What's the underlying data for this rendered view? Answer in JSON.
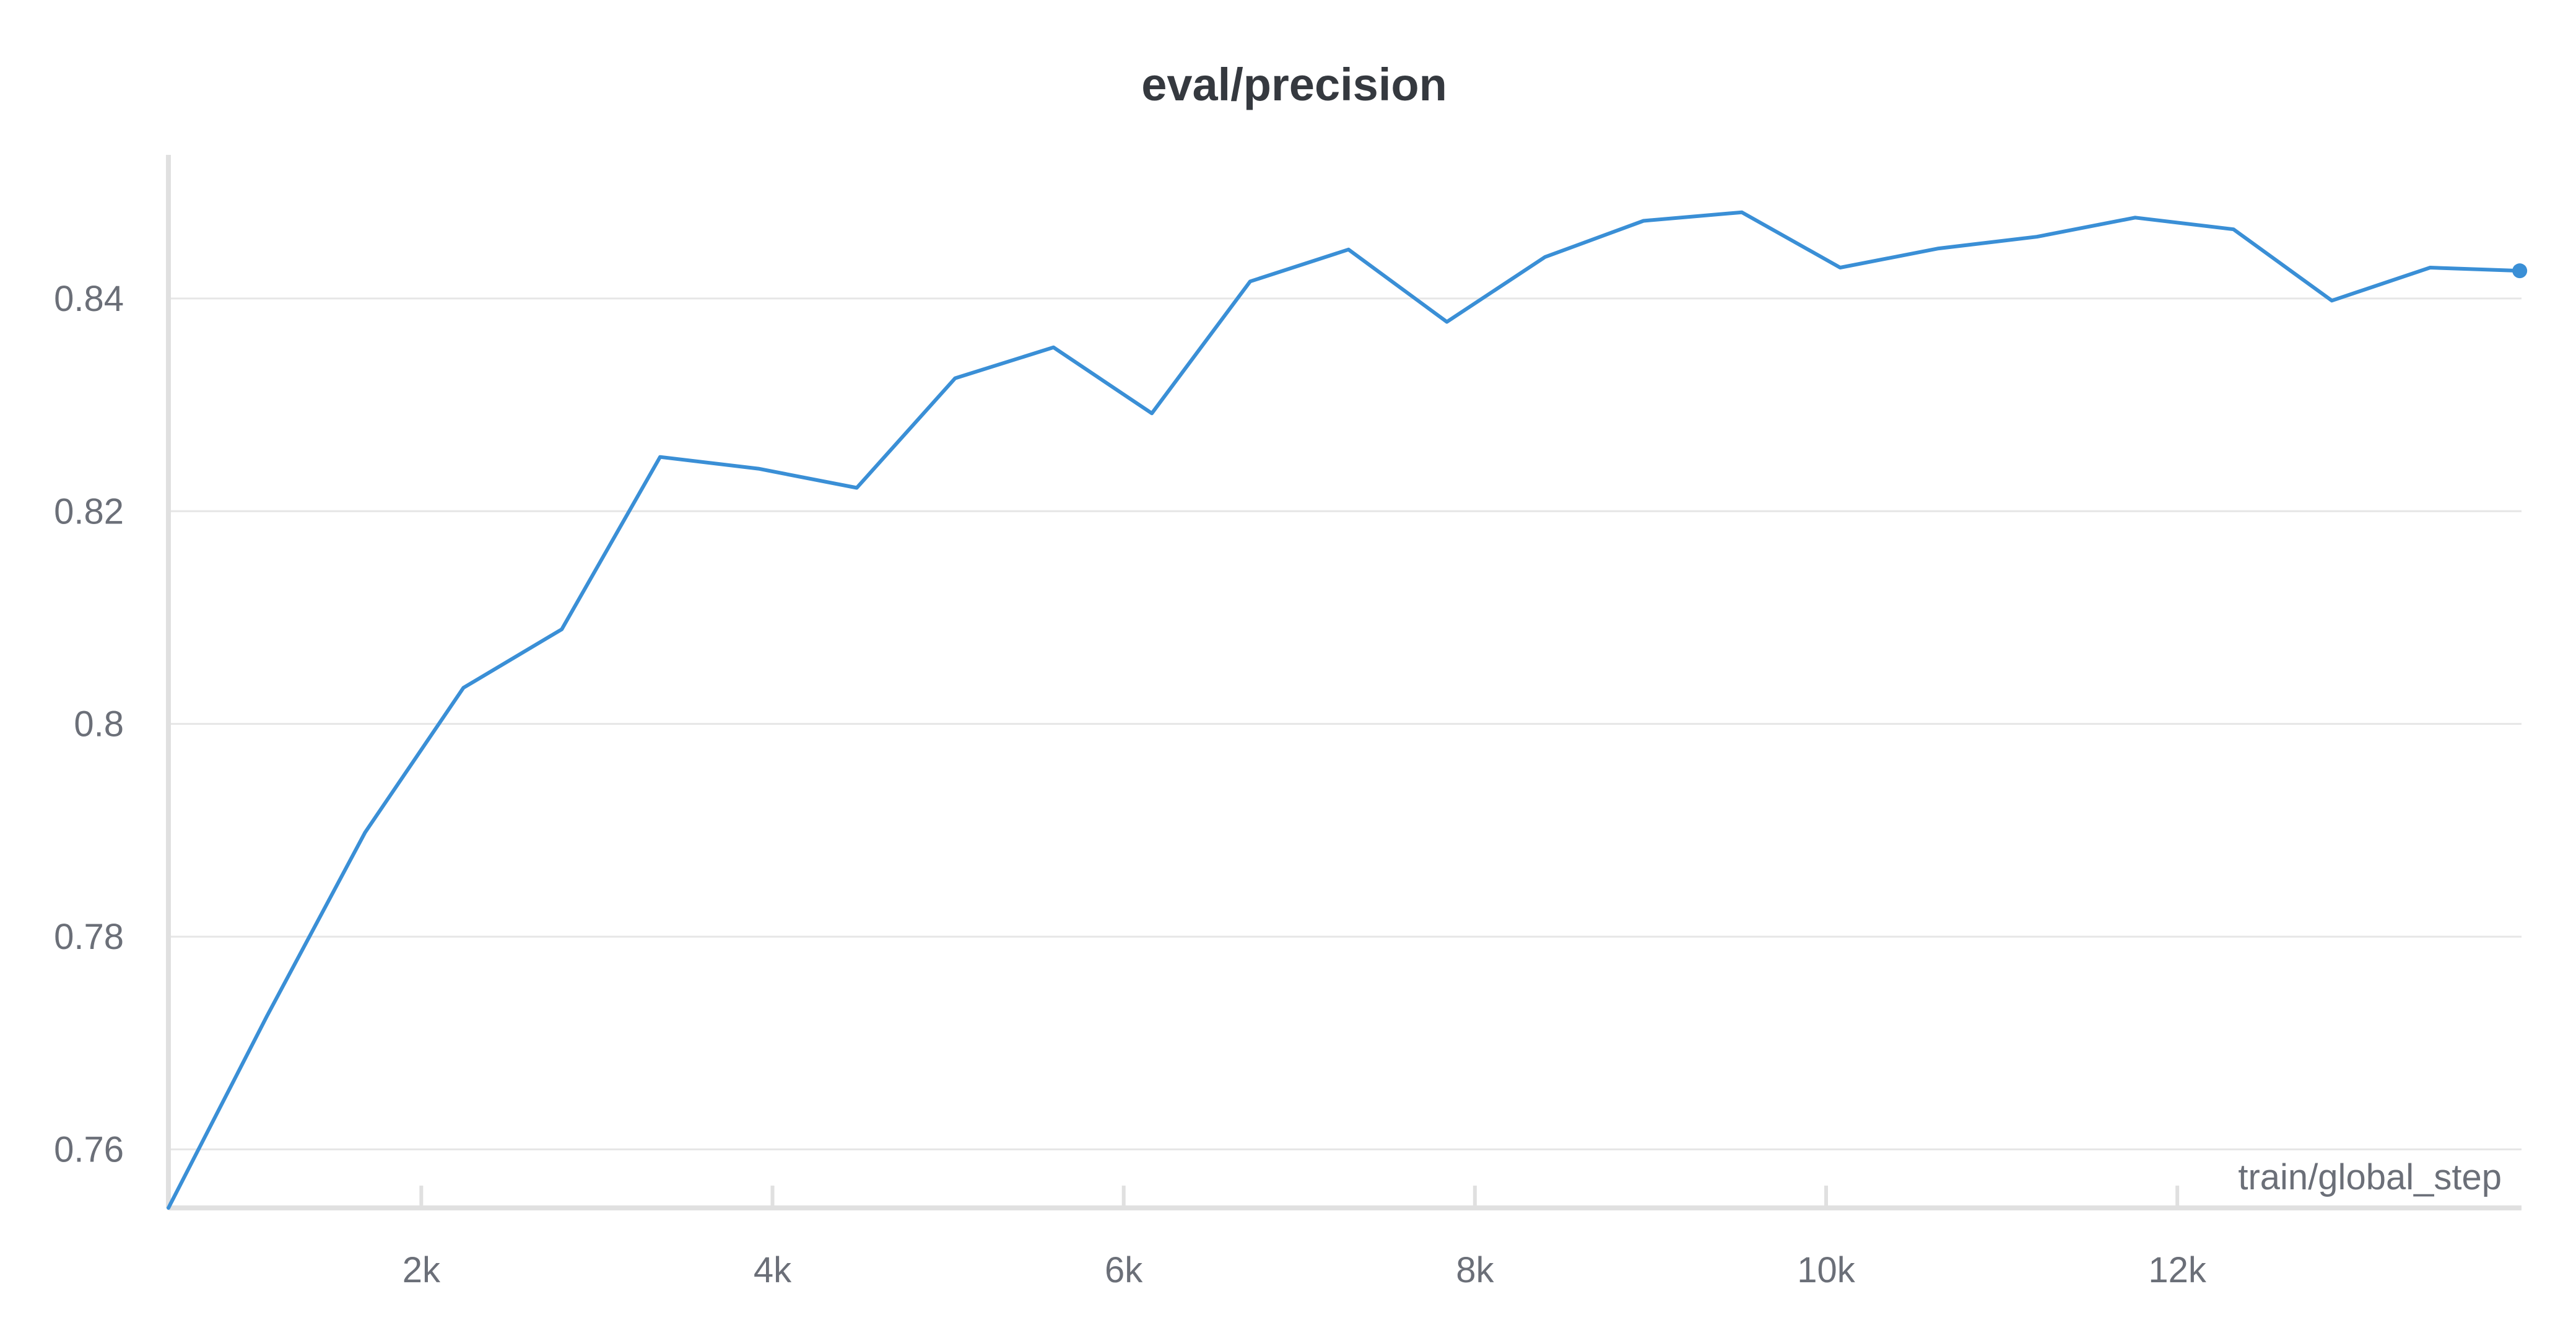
{
  "chart_data": {
    "type": "line",
    "title": "eval/precision",
    "xlabel": "train/global_step",
    "ylabel": "",
    "xlim": [
      560,
      13960
    ],
    "ylim": [
      0.7545,
      0.8535
    ],
    "x_ticks": [
      {
        "value": 2000,
        "label": "2k"
      },
      {
        "value": 4000,
        "label": "4k"
      },
      {
        "value": 6000,
        "label": "6k"
      },
      {
        "value": 8000,
        "label": "8k"
      },
      {
        "value": 10000,
        "label": "10k"
      },
      {
        "value": 12000,
        "label": "12k"
      }
    ],
    "y_ticks": [
      {
        "value": 0.76,
        "label": "0.76"
      },
      {
        "value": 0.78,
        "label": "0.78"
      },
      {
        "value": 0.8,
        "label": "0.8"
      },
      {
        "value": 0.82,
        "label": "0.82"
      },
      {
        "value": 0.84,
        "label": "0.84"
      }
    ],
    "grid": true,
    "legend": "none",
    "series_color": "#3a8fd6",
    "series": [
      {
        "x": [
          560,
          1120,
          1680,
          2240,
          2800,
          3360,
          3920,
          4480,
          5040,
          5600,
          6160,
          6720,
          7280,
          7840,
          8400,
          8960,
          9520,
          10080,
          10640,
          11200,
          11760,
          12320,
          12880,
          13440,
          13950
        ],
        "values": [
          0.7545,
          0.7725,
          0.7898,
          0.8034,
          0.8089,
          0.8251,
          0.824,
          0.8222,
          0.8325,
          0.8354,
          0.8292,
          0.8416,
          0.8446,
          0.8378,
          0.8439,
          0.8473,
          0.8481,
          0.8429,
          0.8447,
          0.8458,
          0.8476,
          0.8465,
          0.8398,
          0.8429,
          0.8426
        ]
      }
    ]
  }
}
